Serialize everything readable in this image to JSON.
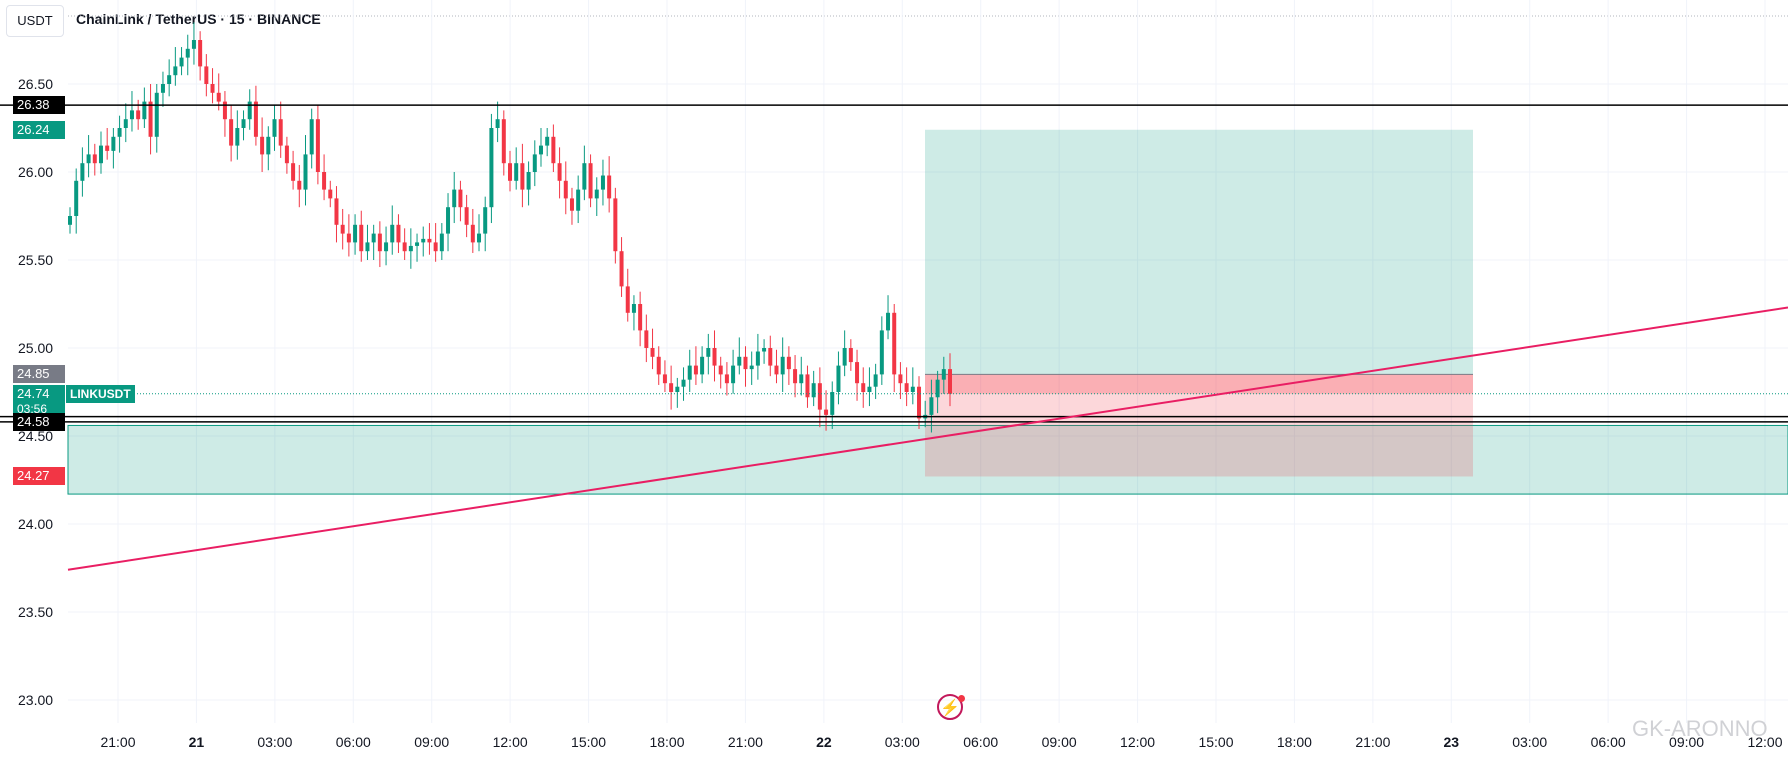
{
  "header": {
    "currency": "USDT",
    "title": "ChainLink / TetherUS · 15 · BINANCE"
  },
  "watermark": "GK-ARONNO",
  "colors": {
    "up": "#089981",
    "down": "#f23645",
    "trendline": "#e91e63",
    "grid": "#f0f3fa",
    "axis_text": "#131722"
  },
  "chart_data": {
    "type": "candlestick",
    "symbol": "LINKUSDT",
    "interval": "15",
    "exchange": "BINANCE",
    "ylim": [
      22.82,
      26.85
    ],
    "y_ticks": [
      "23.00",
      "23.50",
      "24.00",
      "24.50",
      "25.00",
      "25.50",
      "26.00",
      "26.50"
    ],
    "x_ticks": [
      "21:00",
      "21",
      "03:00",
      "06:00",
      "09:00",
      "12:00",
      "15:00",
      "18:00",
      "21:00",
      "22",
      "03:00",
      "06:00",
      "09:00",
      "12:00",
      "15:00",
      "18:00",
      "21:00",
      "23",
      "03:00",
      "06:00",
      "09:00",
      "12:00"
    ],
    "x_tick_bold": [
      "21",
      "22",
      "23"
    ],
    "price_labels": [
      {
        "text": "26.38",
        "price": 26.38,
        "kind": "black"
      },
      {
        "text": "26.24",
        "price": 26.24,
        "kind": "green"
      },
      {
        "text": "24.85",
        "price": 24.85,
        "kind": "gray"
      },
      {
        "text": "24.74",
        "price": 24.74,
        "kind": "green"
      },
      {
        "text": "03:56",
        "price": 24.65,
        "kind": "green-timer"
      },
      {
        "text": "24.58",
        "price": 24.58,
        "kind": "black"
      },
      {
        "text": "24.27",
        "price": 24.27,
        "kind": "red"
      }
    ],
    "symbol_tag": "LINKUSDT",
    "horizontal_lines": [
      26.38,
      24.61,
      24.58
    ],
    "last_price": 24.74,
    "support_zone": {
      "top": 24.56,
      "bottom": 24.17
    },
    "position": {
      "entry": 24.85,
      "take_profit": 26.24,
      "stop_loss": 24.27,
      "current": 24.74
    },
    "trendline": {
      "from": 23.74,
      "to": 25.23
    },
    "closes": [
      25.75,
      25.95,
      26.05,
      26.1,
      26.05,
      26.15,
      26.12,
      26.2,
      26.25,
      26.3,
      26.35,
      26.3,
      26.4,
      26.2,
      26.45,
      26.5,
      26.55,
      26.6,
      26.65,
      26.7,
      26.75,
      26.6,
      26.5,
      26.45,
      26.4,
      26.3,
      26.15,
      26.25,
      26.3,
      26.4,
      26.2,
      26.1,
      26.2,
      26.3,
      26.15,
      26.05,
      25.95,
      25.9,
      26.1,
      26.3,
      26.0,
      25.9,
      25.85,
      25.7,
      25.65,
      25.6,
      25.7,
      25.55,
      25.6,
      25.65,
      25.55,
      25.6,
      25.7,
      25.6,
      25.55,
      25.58,
      25.6,
      25.62,
      25.6,
      25.55,
      25.65,
      25.8,
      25.9,
      25.8,
      25.7,
      25.6,
      25.65,
      25.8,
      26.25,
      26.3,
      26.05,
      25.95,
      26.05,
      25.9,
      26.0,
      26.1,
      26.15,
      26.2,
      26.05,
      25.95,
      25.85,
      25.78,
      25.9,
      26.05,
      25.85,
      25.9,
      25.98,
      25.85,
      25.55,
      25.35,
      25.2,
      25.25,
      25.1,
      25.0,
      24.95,
      24.85,
      24.8,
      24.75,
      24.78,
      24.82,
      24.9,
      24.85,
      24.95,
      25.0,
      24.9,
      24.85,
      24.8,
      24.9,
      24.95,
      24.88,
      24.9,
      24.98,
      25.0,
      24.9,
      24.85,
      24.95,
      24.88,
      24.8,
      24.85,
      24.72,
      24.8,
      24.65,
      24.62,
      24.75,
      24.9,
      25.0,
      24.92,
      24.8,
      24.75,
      24.78,
      24.85,
      25.1,
      25.2,
      24.85,
      24.8,
      24.75,
      24.78,
      24.6,
      24.62,
      24.72,
      24.82,
      24.88,
      24.74
    ]
  }
}
